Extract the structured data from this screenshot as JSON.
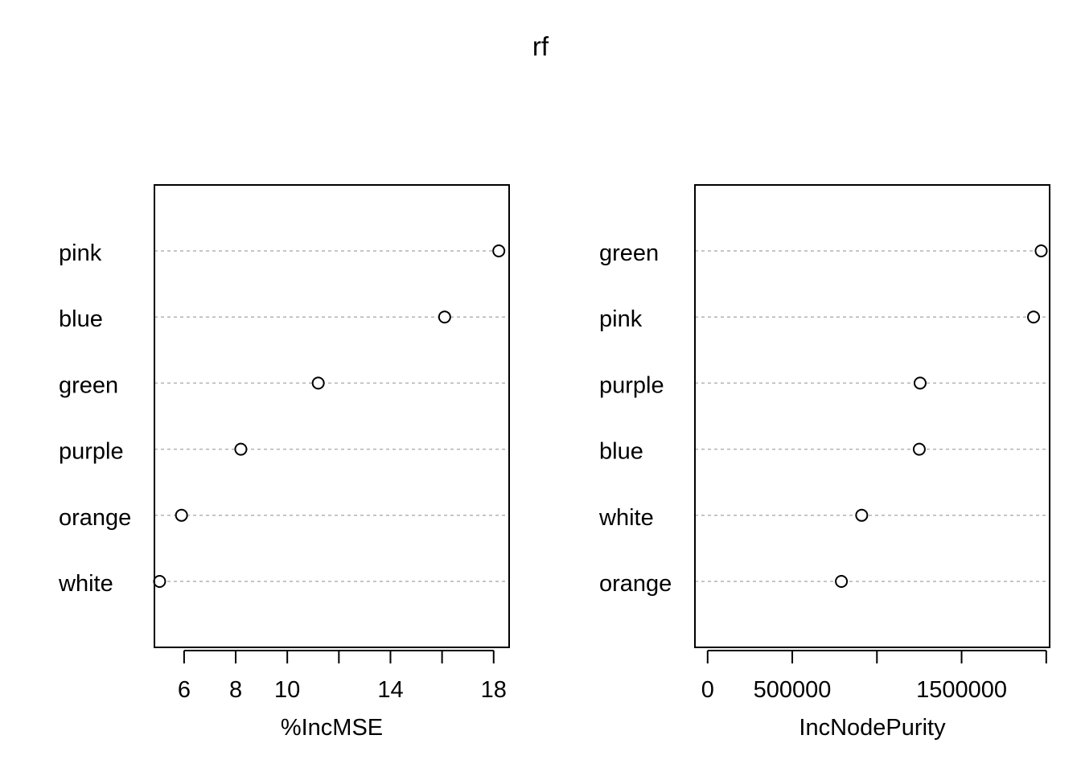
{
  "title": "rf",
  "chart_data": [
    {
      "type": "scatter",
      "style": "dotchart",
      "xlabel": "%IncMSE",
      "categories": [
        "pink",
        "blue",
        "green",
        "purple",
        "orange",
        "white"
      ],
      "values": [
        18.2,
        16.1,
        11.2,
        8.2,
        5.9,
        5.05
      ],
      "xticks": [
        6,
        8,
        10,
        12,
        14,
        16,
        18
      ],
      "xtick_labels": [
        "6",
        "8",
        "10",
        "",
        "14",
        "",
        "18"
      ],
      "xlim": [
        4.85,
        18.6
      ],
      "grid": "dotted horizontal per category",
      "marker": "open circle"
    },
    {
      "type": "scatter",
      "style": "dotchart",
      "xlabel": "IncNodePurity",
      "categories": [
        "green",
        "pink",
        "purple",
        "blue",
        "white",
        "orange"
      ],
      "values": [
        1970000,
        1925000,
        1255000,
        1250000,
        910000,
        790000
      ],
      "xticks": [
        0,
        500000,
        1000000,
        1500000,
        2000000
      ],
      "xtick_labels": [
        "0",
        "500000",
        "",
        "1500000",
        ""
      ],
      "xlim": [
        -75000,
        2020000
      ],
      "grid": "dotted horizontal per category",
      "marker": "open circle"
    }
  ]
}
